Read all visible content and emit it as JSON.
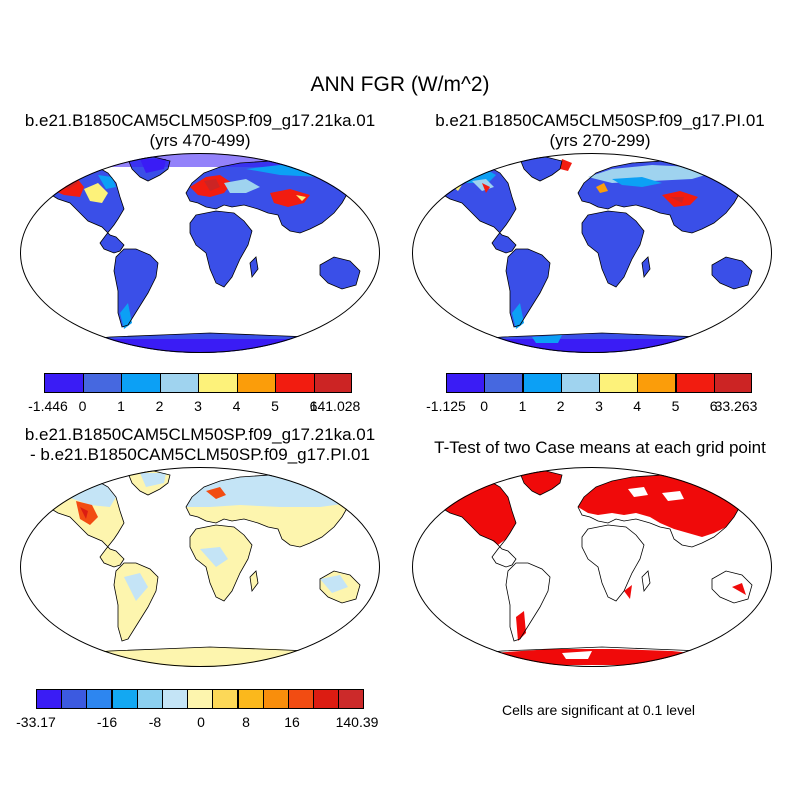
{
  "title": "ANN FGR (W/m^2)",
  "panels": [
    {
      "title_line1": "b.e21.B1850CAM5CLM50SP.f09_g17.21ka.01",
      "title_line2": "(yrs 470-499)",
      "colorbar": {
        "colors": [
          "#3a1cf5",
          "#4668e0",
          "#0ca0f5",
          "#9fd3ef",
          "#fdf27a",
          "#fb9d0a",
          "#f21c10",
          "#cc2424"
        ],
        "labels": [
          "-1.446",
          "0",
          "1",
          "2",
          "3",
          "4",
          "5",
          "6",
          "141.028"
        ]
      }
    },
    {
      "title_line1": "b.e21.B1850CAM5CLM50SP.f09_g17.PI.01",
      "title_line2": "(yrs 270-299)",
      "colorbar": {
        "colors": [
          "#3a1cf5",
          "#4668e0",
          "#0ca0f5",
          "#9fd3ef",
          "#fdf27a",
          "#fb9d0a",
          "#f21c10",
          "#cc2424"
        ],
        "labels": [
          "-1.125",
          "0",
          "1",
          "2",
          "3",
          "4",
          "5",
          "6",
          "33.263"
        ]
      }
    },
    {
      "title_line1": "b.e21.B1850CAM5CLM50SP.f09_g17.21ka.01",
      "title_line2": "- b.e21.B1850CAM5CLM50SP.f09_g17.PI.01",
      "colorbar": {
        "colors": [
          "#3a1cf5",
          "#3c5ae0",
          "#2d86f0",
          "#13a8f2",
          "#8cd0f0",
          "#c4e4f6",
          "#fdf5ae",
          "#fcd858",
          "#fbb81c",
          "#f98e0c",
          "#f24c12",
          "#dc1c12",
          "#cc2a2a"
        ],
        "labels": [
          "-33.17",
          "-16",
          "-8",
          "0",
          "8",
          "16",
          "140.39"
        ]
      }
    },
    {
      "title_line1": "T-Test of two Case means at each grid point",
      "note": "Cells are significant at 0.1 level"
    }
  ],
  "legend_colors": {
    "ocean": "#ffffff",
    "significant": "#f00a0a",
    "land_outline": "#000000"
  }
}
